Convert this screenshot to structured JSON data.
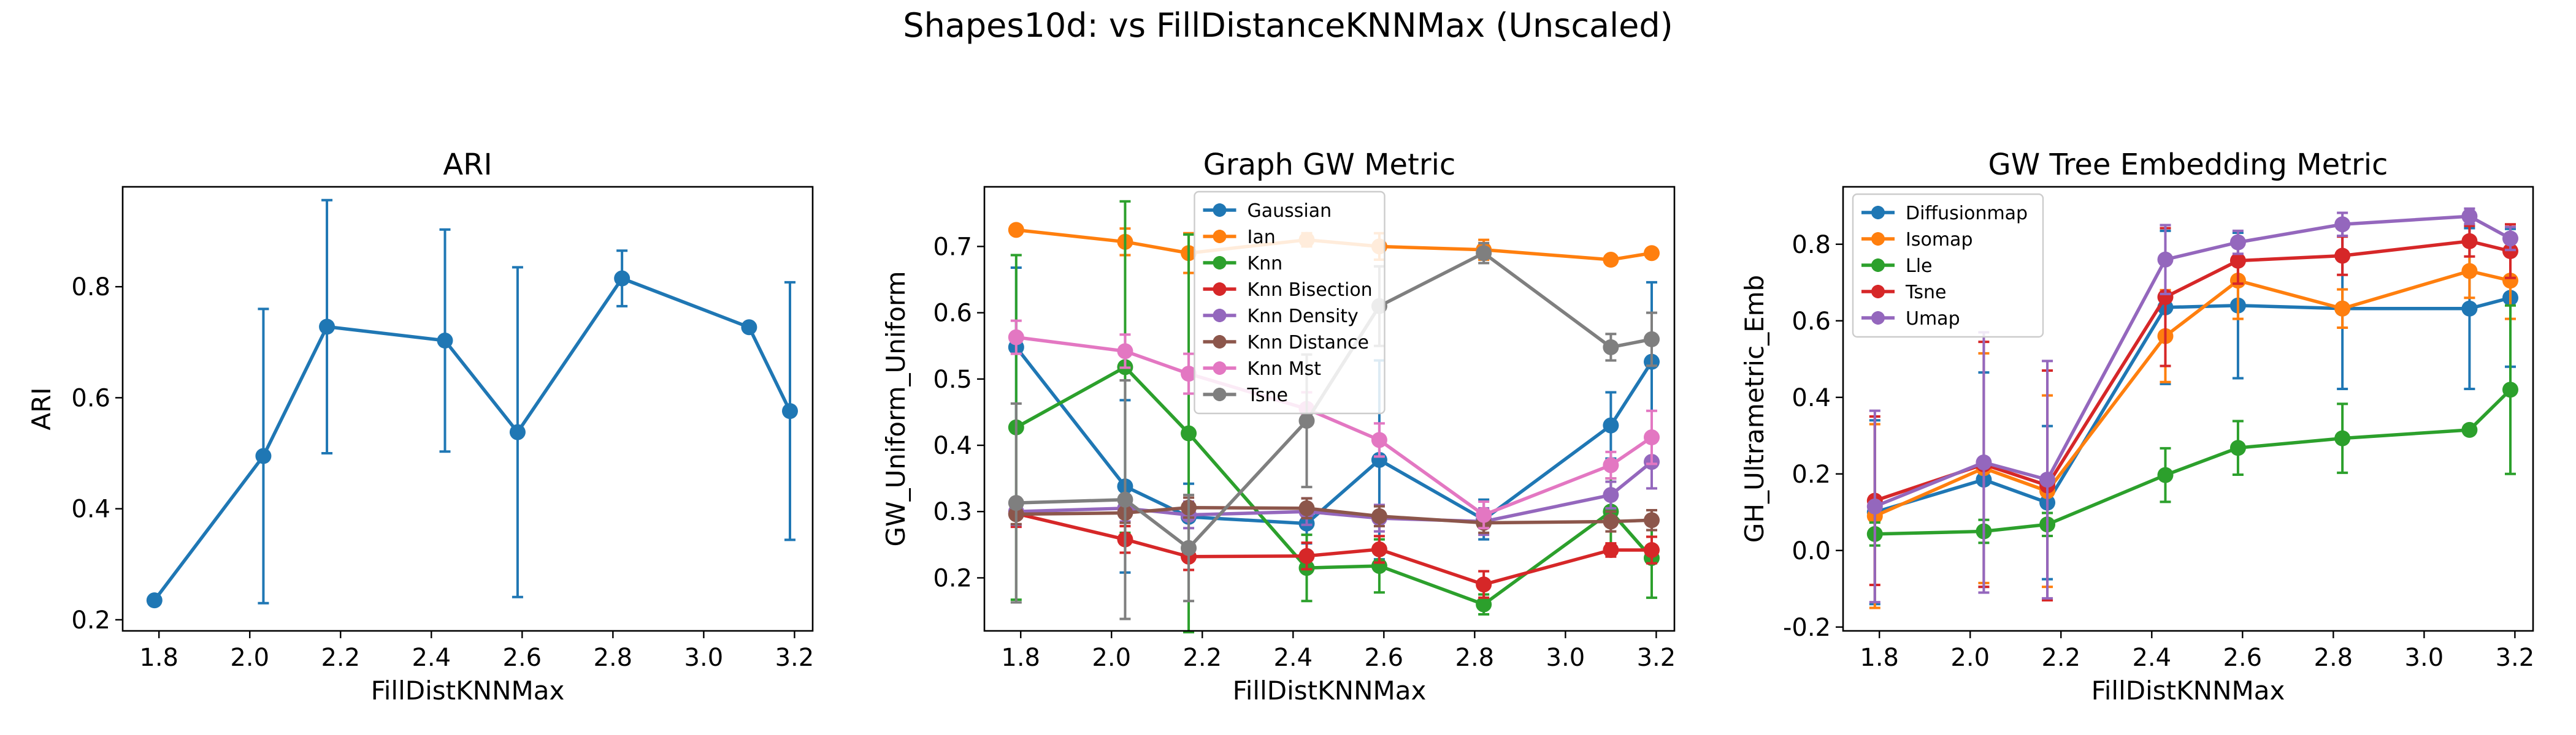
{
  "figure": {
    "suptitle": "Shapes10d: vs FillDistanceKNNMax (Unscaled)"
  },
  "chart_data": [
    {
      "type": "line",
      "title": "ARI",
      "xlabel": "FillDistKNNMax",
      "ylabel": "ARI",
      "xlim": [
        1.72,
        3.24
      ],
      "ylim": [
        0.18,
        0.98
      ],
      "xticks": [
        1.8,
        2.0,
        2.2,
        2.4,
        2.6,
        2.8,
        3.0,
        3.2
      ],
      "yticks": [
        0.2,
        0.4,
        0.6,
        0.8
      ],
      "x": [
        1.79,
        2.03,
        2.17,
        2.43,
        2.59,
        2.82,
        3.1,
        3.19
      ],
      "legend": null,
      "series": [
        {
          "color": "#1f77b4",
          "values": [
            0.235,
            0.495,
            0.728,
            0.703,
            0.538,
            0.815,
            0.727,
            0.576
          ],
          "errors": [
            0.0,
            0.265,
            0.228,
            0.2,
            0.297,
            0.05,
            0.0,
            0.232
          ]
        }
      ]
    },
    {
      "type": "line",
      "title": "Graph GW Metric",
      "xlabel": "FillDistKNNMax",
      "ylabel": "GW_Uniform_Uniform",
      "xlim": [
        1.72,
        3.24
      ],
      "ylim": [
        0.12,
        0.79
      ],
      "xticks": [
        1.8,
        2.0,
        2.2,
        2.4,
        2.6,
        2.8,
        3.0,
        3.2
      ],
      "yticks": [
        0.2,
        0.3,
        0.4,
        0.5,
        0.6,
        0.7
      ],
      "x": [
        1.79,
        2.03,
        2.17,
        2.43,
        2.59,
        2.82,
        3.1,
        3.19
      ],
      "legend": "upper center",
      "series": [
        {
          "name": "Gaussian",
          "color": "#1f77b4",
          "values": [
            0.548,
            0.338,
            0.292,
            0.282,
            0.378,
            0.288,
            0.43,
            0.526
          ],
          "errors": [
            0.12,
            0.13,
            0.05,
            0.03,
            0.15,
            0.03,
            0.05,
            0.12
          ]
        },
        {
          "name": "Ian",
          "color": "#ff7f0e",
          "values": [
            0.725,
            0.707,
            0.69,
            0.71,
            0.7,
            0.695,
            0.68,
            0.69
          ],
          "errors": [
            0.0,
            0.02,
            0.03,
            0.01,
            0.02,
            0.015,
            0.0,
            0.0
          ]
        },
        {
          "name": "Knn",
          "color": "#2ca02c",
          "values": [
            0.427,
            0.518,
            0.418,
            0.215,
            0.218,
            0.16,
            0.3,
            0.23
          ],
          "errors": [
            0.26,
            0.25,
            0.3,
            0.05,
            0.04,
            0.015,
            0.05,
            0.06
          ]
        },
        {
          "name": "Knn Bisection",
          "color": "#d62728",
          "values": [
            0.297,
            0.258,
            0.232,
            0.233,
            0.243,
            0.19,
            0.242,
            0.242
          ],
          "errors": [
            0.02,
            0.02,
            0.02,
            0.02,
            0.02,
            0.02,
            0.01,
            0.02
          ]
        },
        {
          "name": "Knn Density",
          "color": "#9467bd",
          "values": [
            0.3,
            0.305,
            0.295,
            0.3,
            0.29,
            0.285,
            0.325,
            0.375
          ],
          "errors": [
            0.02,
            0.02,
            0.02,
            0.02,
            0.02,
            0.02,
            0.02,
            0.04
          ]
        },
        {
          "name": "Knn Distance",
          "color": "#8c564b",
          "values": [
            0.296,
            0.298,
            0.306,
            0.305,
            0.293,
            0.283,
            0.285,
            0.287
          ],
          "errors": [
            0.015,
            0.015,
            0.015,
            0.015,
            0.015,
            0.015,
            0.015,
            0.015
          ]
        },
        {
          "name": "Knn Mst",
          "color": "#e377c2",
          "values": [
            0.563,
            0.542,
            0.508,
            0.455,
            0.408,
            0.295,
            0.37,
            0.412
          ],
          "errors": [
            0.025,
            0.025,
            0.03,
            0.025,
            0.025,
            0.02,
            0.02,
            0.04
          ]
        },
        {
          "name": "Tsne",
          "color": "#7f7f7f",
          "values": [
            0.313,
            0.318,
            0.245,
            0.437,
            0.61,
            0.69,
            0.548,
            0.56
          ],
          "errors": [
            0.15,
            0.18,
            0.08,
            0.1,
            0.06,
            0.015,
            0.02,
            0.04
          ]
        }
      ]
    },
    {
      "type": "line",
      "title": "GW Tree Embedding Metric",
      "xlabel": "FillDistKNNMax",
      "ylabel": "GH_Ultrametric_Emb",
      "xlim": [
        1.72,
        3.24
      ],
      "ylim": [
        -0.21,
        0.95
      ],
      "xticks": [
        1.8,
        2.0,
        2.2,
        2.4,
        2.6,
        2.8,
        3.0,
        3.2
      ],
      "yticks": [
        -0.2,
        0.0,
        0.2,
        0.4,
        0.6,
        0.8
      ],
      "x": [
        1.79,
        2.03,
        2.17,
        2.43,
        2.59,
        2.82,
        3.1,
        3.19
      ],
      "legend": "upper left",
      "series": [
        {
          "name": "Diffusionmap",
          "color": "#1f77b4",
          "values": [
            0.1,
            0.185,
            0.125,
            0.635,
            0.64,
            0.632,
            0.632,
            0.66
          ],
          "errors": [
            0.24,
            0.28,
            0.2,
            0.2,
            0.19,
            0.21,
            0.21,
            0.18
          ]
        },
        {
          "name": "Isomap",
          "color": "#ff7f0e",
          "values": [
            0.09,
            0.215,
            0.155,
            0.56,
            0.705,
            0.632,
            0.73,
            0.705
          ],
          "errors": [
            0.24,
            0.3,
            0.25,
            0.12,
            0.1,
            0.05,
            0.07,
            0.1
          ]
        },
        {
          "name": "Lle",
          "color": "#2ca02c",
          "values": [
            0.043,
            0.05,
            0.068,
            0.197,
            0.268,
            0.293,
            0.315,
            0.42
          ],
          "errors": [
            0.03,
            0.03,
            0.03,
            0.07,
            0.07,
            0.09,
            0.01,
            0.22
          ]
        },
        {
          "name": "Tsne",
          "color": "#d62728",
          "values": [
            0.13,
            0.225,
            0.17,
            0.662,
            0.757,
            0.77,
            0.808,
            0.782
          ],
          "errors": [
            0.22,
            0.32,
            0.3,
            0.18,
            0.06,
            0.05,
            0.04,
            0.07
          ]
        },
        {
          "name": "Umap",
          "color": "#9467bd",
          "values": [
            0.115,
            0.23,
            0.185,
            0.76,
            0.805,
            0.852,
            0.873,
            0.815
          ],
          "errors": [
            0.25,
            0.34,
            0.31,
            0.09,
            0.03,
            0.03,
            0.02,
            0.03
          ]
        }
      ]
    }
  ]
}
